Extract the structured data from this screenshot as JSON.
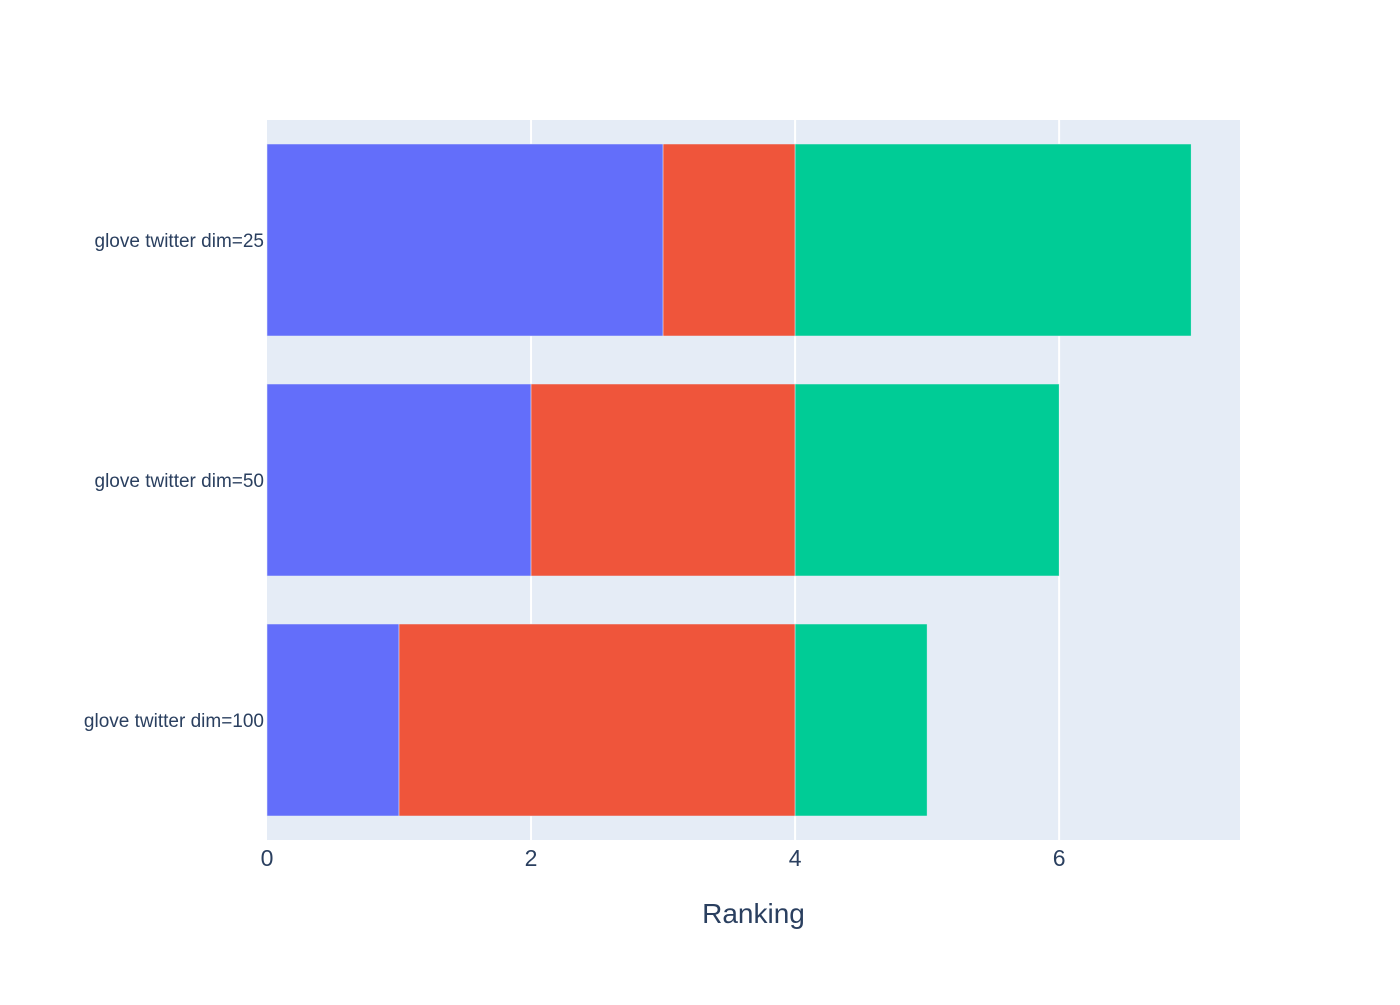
{
  "chart_data": {
    "type": "bar",
    "orientation": "horizontal",
    "barmode": "stack",
    "categories": [
      "glove twitter dim=25",
      "glove twitter dim=50",
      "glove twitter dim=100"
    ],
    "series": [
      {
        "values": [
          3,
          2,
          1
        ],
        "color": "#636efa"
      },
      {
        "values": [
          1,
          2,
          3
        ],
        "color": "#ef553b"
      },
      {
        "values": [
          3,
          2,
          1
        ],
        "color": "#00cc96"
      }
    ],
    "xlabel": "Ranking",
    "ylabel": "",
    "xlim": [
      0,
      7.37
    ],
    "x_ticks": [
      0,
      2,
      4,
      6
    ],
    "x_tick_labels": [
      "0",
      "2",
      "4",
      "6"
    ],
    "grid": true,
    "plot_background": "#e5ecf6",
    "gridline_color": "#ffffff",
    "text_color": "#2a3f5f"
  }
}
